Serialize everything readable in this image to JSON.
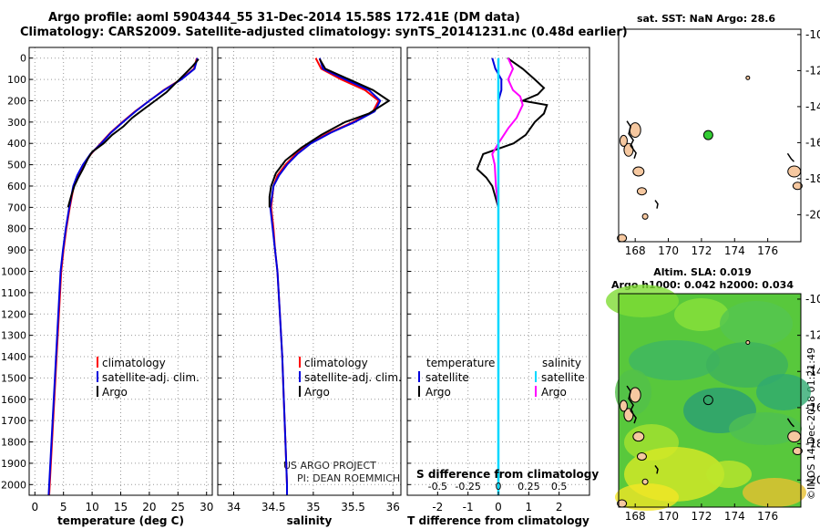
{
  "titles": {
    "line1": "Argo profile: aoml 5904344_55 31-Dec-2014 15.58S 172.41E (DM data)",
    "line2": "Climatology: CARS2009. Satellite-adjusted climatology: synTS_20141231.nc (0.48d earlier)"
  },
  "credits": {
    "line1": "US ARGO PROJECT",
    "line2": "PI: DEAN ROEMMICH"
  },
  "stamp": "©IMOS 14-Dec-2018 01:21:49",
  "colors": {
    "climatology": "#ff0000",
    "satellite": "#0000dd",
    "argo": "#000000",
    "sat_salinity": "#00d8ff",
    "argo_salinity": "#ff00ff",
    "station": "#33cc33",
    "land": "#f6c8a0"
  },
  "chart_data": [
    {
      "type": "line",
      "panel": "temperature",
      "xlabel": "temperature (deg C)",
      "ylabel": "",
      "xlim": [
        -1,
        31
      ],
      "ylim": [
        2050,
        0
      ],
      "grid": true,
      "xticks": [
        0,
        5,
        10,
        15,
        20,
        25,
        30
      ],
      "yticks": [
        0,
        100,
        200,
        300,
        400,
        500,
        600,
        700,
        800,
        900,
        1000,
        1100,
        1200,
        1300,
        1400,
        1500,
        1600,
        1700,
        1800,
        1900,
        2000
      ],
      "legend": {
        "position": "lower-right",
        "entries": [
          "climatology",
          "satellite-adj. clim.",
          "Argo"
        ]
      },
      "series": [
        {
          "name": "climatology",
          "color": "#ff0000",
          "points": [
            [
              28.3,
              0
            ],
            [
              27.8,
              50
            ],
            [
              25.5,
              100
            ],
            [
              22.5,
              150
            ],
            [
              20,
              200
            ],
            [
              17.5,
              250
            ],
            [
              15.3,
              300
            ],
            [
              13.2,
              350
            ],
            [
              11.5,
              400
            ],
            [
              9.8,
              450
            ],
            [
              8.5,
              500
            ],
            [
              7.5,
              550
            ],
            [
              6.8,
              600
            ],
            [
              6.1,
              700
            ],
            [
              5.5,
              800
            ],
            [
              5,
              900
            ],
            [
              4.6,
              1000
            ],
            [
              4.2,
              1200
            ],
            [
              3.8,
              1400
            ],
            [
              3.4,
              1600
            ],
            [
              3,
              1800
            ],
            [
              2.6,
              2000
            ],
            [
              2.5,
              2050
            ]
          ]
        },
        {
          "name": "satellite-adj. clim.",
          "color": "#0000dd",
          "points": [
            [
              28.4,
              0
            ],
            [
              27.9,
              50
            ],
            [
              25.6,
              100
            ],
            [
              22.6,
              150
            ],
            [
              20,
              200
            ],
            [
              17.6,
              250
            ],
            [
              15.4,
              300
            ],
            [
              13.3,
              350
            ],
            [
              11.6,
              400
            ],
            [
              9.7,
              450
            ],
            [
              8.4,
              500
            ],
            [
              7.4,
              550
            ],
            [
              6.7,
              600
            ],
            [
              6,
              700
            ],
            [
              5.4,
              800
            ],
            [
              4.9,
              900
            ],
            [
              4.5,
              1000
            ],
            [
              4.1,
              1200
            ],
            [
              3.7,
              1400
            ],
            [
              3.3,
              1600
            ],
            [
              2.9,
              1800
            ],
            [
              2.5,
              2000
            ],
            [
              2.4,
              2050
            ]
          ]
        },
        {
          "name": "Argo",
          "color": "#000000",
          "points": [
            [
              28.6,
              5
            ],
            [
              27.5,
              40
            ],
            [
              26,
              80
            ],
            [
              24.5,
              120
            ],
            [
              23,
              160
            ],
            [
              21,
              200
            ],
            [
              19,
              240
            ],
            [
              17,
              280
            ],
            [
              15.5,
              320
            ],
            [
              13.5,
              360
            ],
            [
              12,
              400
            ],
            [
              10,
              440
            ],
            [
              9.3,
              470
            ],
            [
              8.4,
              520
            ],
            [
              7.6,
              560
            ],
            [
              6.9,
              600
            ],
            [
              6.3,
              650
            ],
            [
              5.8,
              700
            ]
          ]
        }
      ]
    },
    {
      "type": "line",
      "panel": "salinity",
      "xlabel": "salinity",
      "ylabel": "",
      "xlim": [
        33.8,
        36.1
      ],
      "ylim": [
        2050,
        0
      ],
      "grid": true,
      "xticks": [
        34,
        34.5,
        35,
        35.5,
        36
      ],
      "legend": {
        "position": "lower-right",
        "entries": [
          "climatology",
          "satellite-adj. clim.",
          "Argo"
        ]
      },
      "series": [
        {
          "name": "climatology",
          "color": "#ff0000",
          "points": [
            [
              35.03,
              0
            ],
            [
              35.1,
              50
            ],
            [
              35.35,
              100
            ],
            [
              35.65,
              150
            ],
            [
              35.82,
              200
            ],
            [
              35.75,
              250
            ],
            [
              35.5,
              300
            ],
            [
              35.2,
              350
            ],
            [
              34.95,
              400
            ],
            [
              34.78,
              450
            ],
            [
              34.65,
              500
            ],
            [
              34.55,
              550
            ],
            [
              34.5,
              600
            ],
            [
              34.47,
              700
            ],
            [
              34.5,
              800
            ],
            [
              34.52,
              900
            ],
            [
              34.55,
              1000
            ],
            [
              34.58,
              1200
            ],
            [
              34.61,
              1400
            ],
            [
              34.63,
              1600
            ],
            [
              34.65,
              1800
            ],
            [
              34.67,
              2000
            ],
            [
              34.67,
              2050
            ]
          ]
        },
        {
          "name": "satellite-adj. clim.",
          "color": "#0000dd",
          "points": [
            [
              35.08,
              0
            ],
            [
              35.12,
              50
            ],
            [
              35.4,
              100
            ],
            [
              35.7,
              150
            ],
            [
              35.84,
              200
            ],
            [
              35.77,
              250
            ],
            [
              35.52,
              300
            ],
            [
              35.22,
              350
            ],
            [
              34.97,
              400
            ],
            [
              34.8,
              450
            ],
            [
              34.67,
              500
            ],
            [
              34.57,
              550
            ],
            [
              34.5,
              600
            ],
            [
              34.46,
              700
            ],
            [
              34.49,
              800
            ],
            [
              34.52,
              900
            ],
            [
              34.55,
              1000
            ],
            [
              34.58,
              1200
            ],
            [
              34.61,
              1400
            ],
            [
              34.63,
              1600
            ],
            [
              34.65,
              1800
            ],
            [
              34.67,
              2000
            ],
            [
              34.67,
              2050
            ]
          ]
        },
        {
          "name": "Argo",
          "color": "#000000",
          "points": [
            [
              35.08,
              5
            ],
            [
              35.15,
              50
            ],
            [
              35.45,
              100
            ],
            [
              35.75,
              150
            ],
            [
              35.95,
              200
            ],
            [
              35.7,
              260
            ],
            [
              35.4,
              300
            ],
            [
              35.1,
              360
            ],
            [
              34.85,
              420
            ],
            [
              34.65,
              480
            ],
            [
              34.53,
              540
            ],
            [
              34.47,
              600
            ],
            [
              34.45,
              650
            ],
            [
              34.45,
              700
            ]
          ]
        }
      ]
    },
    {
      "type": "line",
      "panel": "differences",
      "xlabel": "T difference from climatology",
      "x2label": "S difference from climatology",
      "ylabel": "",
      "xlim": [
        -3,
        3
      ],
      "x2lim": [
        -0.75,
        0.75
      ],
      "ylim": [
        2050,
        0
      ],
      "grid": true,
      "xticks": [
        -2,
        -1,
        0,
        1,
        2
      ],
      "x2ticks": [
        -0.5,
        -0.25,
        0,
        0.25,
        0.5
      ],
      "legend_left": {
        "title": "temperature",
        "entries": [
          "satellite",
          "Argo"
        ]
      },
      "legend_right": {
        "title": "salinity",
        "entries": [
          "satellite",
          "Argo"
        ]
      },
      "series": [
        {
          "name": "temperature satellite",
          "color": "#0000dd",
          "points": [
            [
              -0.2,
              0
            ],
            [
              -0.1,
              50
            ],
            [
              0.1,
              100
            ],
            [
              0.1,
              150
            ],
            [
              0,
              200
            ],
            [
              0,
              300
            ],
            [
              0,
              400
            ],
            [
              0,
              500
            ],
            [
              0,
              700
            ],
            [
              0,
              1000
            ],
            [
              0,
              1500
            ],
            [
              0,
              2050
            ]
          ]
        },
        {
          "name": "temperature Argo",
          "color": "#000000",
          "points": [
            [
              0.3,
              0
            ],
            [
              0.8,
              50
            ],
            [
              1.2,
              100
            ],
            [
              1.5,
              140
            ],
            [
              1.3,
              170
            ],
            [
              0.8,
              200
            ],
            [
              1.6,
              220
            ],
            [
              1.5,
              260
            ],
            [
              1.2,
              300
            ],
            [
              0.9,
              360
            ],
            [
              0.5,
              400
            ],
            [
              -0.5,
              450
            ],
            [
              -0.7,
              520
            ],
            [
              -0.4,
              560
            ],
            [
              -0.2,
              600
            ],
            [
              0,
              700
            ],
            [
              0,
              1000
            ],
            [
              0,
              1500
            ],
            [
              0,
              2050
            ]
          ]
        },
        {
          "name": "salinity satellite",
          "color": "#00d8ff",
          "points": [
            [
              0,
              0
            ],
            [
              0,
              100
            ],
            [
              0,
              200
            ],
            [
              0,
              400
            ],
            [
              0,
              700
            ],
            [
              0,
              1000
            ],
            [
              0,
              2050
            ]
          ]
        },
        {
          "name": "salinity Argo",
          "color": "#ff00ff",
          "points": [
            [
              0.08,
              0
            ],
            [
              0.12,
              50
            ],
            [
              0.08,
              100
            ],
            [
              0.12,
              150
            ],
            [
              0.18,
              180
            ],
            [
              0.2,
              220
            ],
            [
              0.15,
              280
            ],
            [
              0.08,
              330
            ],
            [
              0,
              400
            ],
            [
              -0.05,
              450
            ],
            [
              -0.03,
              500
            ],
            [
              -0.02,
              600
            ],
            [
              0,
              700
            ],
            [
              0,
              1000
            ],
            [
              0,
              2050
            ]
          ]
        }
      ]
    },
    {
      "type": "scatter",
      "panel": "map-sst",
      "title": "sat. SST: NaN Argo: 28.6",
      "xlim": [
        167,
        178
      ],
      "ylim": [
        -21.5,
        -9.7
      ],
      "xticks": [
        168,
        170,
        172,
        174,
        176
      ],
      "yticks": [
        -10,
        -12,
        -14,
        -16,
        -18,
        -20
      ],
      "points": [
        {
          "x": 172.41,
          "y": -15.58
        }
      ]
    },
    {
      "type": "heatmap",
      "panel": "map-sla",
      "title": "Altim. SLA: 0.019",
      "subtitle": "Argo h1000: 0.042 h2000: 0.034",
      "xlim": [
        167,
        178
      ],
      "ylim": [
        -21.5,
        -9.7
      ],
      "xticks": [
        168,
        170,
        172,
        174,
        176
      ],
      "yticks": [
        -10,
        -12,
        -14,
        -16,
        -18,
        -20
      ],
      "points": [
        {
          "x": 172.41,
          "y": -15.58
        }
      ]
    }
  ]
}
